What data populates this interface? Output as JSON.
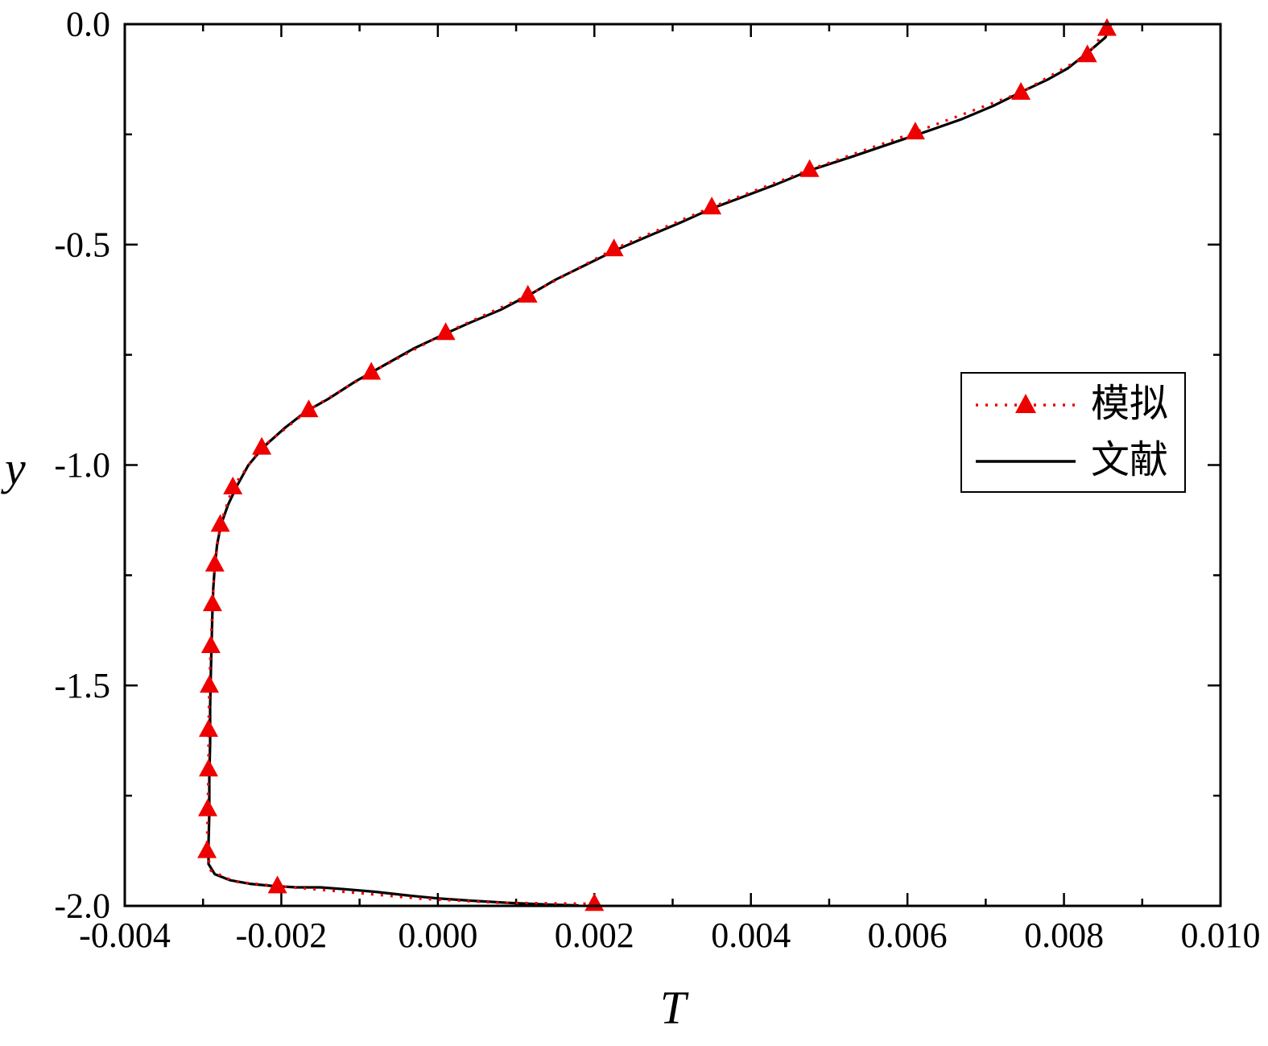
{
  "chart_data": {
    "type": "line",
    "title": "",
    "xlabel": "T",
    "ylabel": "y",
    "xlim": [
      -0.004,
      0.01
    ],
    "ylim": [
      -2.0,
      0.0
    ],
    "grid": false,
    "legend_position": "right-middle",
    "x_ticks": [
      -0.004,
      -0.002,
      0.0,
      0.002,
      0.004,
      0.006,
      0.008,
      0.01
    ],
    "x_tick_labels": [
      "-0.004",
      "-0.002",
      "0.000",
      "0.002",
      "0.004",
      "0.006",
      "0.008",
      "0.010"
    ],
    "x_minor_step": 0.001,
    "y_ticks": [
      0.0,
      -0.5,
      -1.0,
      -1.5,
      -2.0
    ],
    "y_tick_labels": [
      "0.0",
      "-0.5",
      "-1.0",
      "-1.5",
      "-2.0"
    ],
    "y_minor_step": 0.25,
    "series": [
      {
        "name": "文献",
        "color": "#000000",
        "line_style": "solid",
        "marker": "none",
        "line_points": [
          [
            0.0086,
            0.0
          ],
          [
            0.00853,
            -0.03
          ],
          [
            0.0083,
            -0.065
          ],
          [
            0.00805,
            -0.1
          ],
          [
            0.0078,
            -0.125
          ],
          [
            0.0075,
            -0.15
          ],
          [
            0.0071,
            -0.185
          ],
          [
            0.0067,
            -0.215
          ],
          [
            0.0063,
            -0.24
          ],
          [
            0.0058,
            -0.27
          ],
          [
            0.0053,
            -0.3
          ],
          [
            0.00478,
            -0.33
          ],
          [
            0.0043,
            -0.365
          ],
          [
            0.00385,
            -0.395
          ],
          [
            0.0035,
            -0.418
          ],
          [
            0.0031,
            -0.45
          ],
          [
            0.0027,
            -0.48
          ],
          [
            0.00228,
            -0.512
          ],
          [
            0.0019,
            -0.545
          ],
          [
            0.0015,
            -0.58
          ],
          [
            0.00118,
            -0.613
          ],
          [
            0.0008,
            -0.648
          ],
          [
            0.0004,
            -0.678
          ],
          [
            0.00012,
            -0.7
          ],
          [
            -0.0003,
            -0.735
          ],
          [
            -0.0007,
            -0.775
          ],
          [
            -0.00105,
            -0.81
          ],
          [
            -0.0014,
            -0.85
          ],
          [
            -0.00168,
            -0.878
          ],
          [
            -0.00195,
            -0.915
          ],
          [
            -0.00222,
            -0.958
          ],
          [
            -0.00242,
            -1.0
          ],
          [
            -0.00256,
            -1.045
          ],
          [
            -0.00268,
            -1.09
          ],
          [
            -0.00277,
            -1.135
          ],
          [
            -0.00282,
            -1.18
          ],
          [
            -0.00285,
            -1.23
          ],
          [
            -0.00287,
            -1.28
          ],
          [
            -0.00288,
            -1.33
          ],
          [
            -0.00289,
            -1.4
          ],
          [
            -0.0029,
            -1.47
          ],
          [
            -0.00291,
            -1.55
          ],
          [
            -0.00291,
            -1.63
          ],
          [
            -0.00292,
            -1.71
          ],
          [
            -0.00292,
            -1.79
          ],
          [
            -0.00293,
            -1.86
          ],
          [
            -0.00293,
            -1.905
          ],
          [
            -0.00285,
            -1.928
          ],
          [
            -0.00265,
            -1.942
          ],
          [
            -0.0024,
            -1.95
          ],
          [
            -0.0021,
            -1.955
          ],
          [
            -0.0018,
            -1.958
          ],
          [
            -0.0015,
            -1.958
          ],
          [
            -0.0012,
            -1.962
          ],
          [
            -0.0008,
            -1.968
          ],
          [
            -0.0004,
            -1.976
          ],
          [
            0.0,
            -1.983
          ],
          [
            0.0004,
            -1.988
          ],
          [
            0.0009,
            -1.993
          ],
          [
            0.0014,
            -1.997
          ],
          [
            0.0018,
            -1.999
          ]
        ]
      },
      {
        "name": "模拟",
        "color": "#ee0000",
        "line_style": "dotted",
        "marker": "triangle",
        "marker_points": [
          [
            0.00855,
            -0.01
          ],
          [
            0.0083,
            -0.07
          ],
          [
            0.00745,
            -0.155
          ],
          [
            0.0061,
            -0.245
          ],
          [
            0.00475,
            -0.33
          ],
          [
            0.0035,
            -0.415
          ],
          [
            0.00225,
            -0.51
          ],
          [
            0.00115,
            -0.615
          ],
          [
            0.0001,
            -0.7
          ],
          [
            -0.00085,
            -0.79
          ],
          [
            -0.00165,
            -0.875
          ],
          [
            -0.00225,
            -0.96
          ],
          [
            -0.00262,
            -1.05
          ],
          [
            -0.00278,
            -1.135
          ],
          [
            -0.00285,
            -1.225
          ],
          [
            -0.00288,
            -1.315
          ],
          [
            -0.0029,
            -1.41
          ],
          [
            -0.00292,
            -1.5
          ],
          [
            -0.00293,
            -1.6
          ],
          [
            -0.00293,
            -1.69
          ],
          [
            -0.00294,
            -1.78
          ],
          [
            -0.00295,
            -1.875
          ],
          [
            -0.00205,
            -1.955
          ],
          [
            0.002,
            -1.995
          ]
        ],
        "line_points": [
          [
            0.0086,
            0.0
          ],
          [
            0.00855,
            -0.01
          ],
          [
            0.0083,
            -0.07
          ],
          [
            0.00745,
            -0.155
          ],
          [
            0.0061,
            -0.245
          ],
          [
            0.00475,
            -0.33
          ],
          [
            0.0035,
            -0.415
          ],
          [
            0.00225,
            -0.51
          ],
          [
            0.00115,
            -0.615
          ],
          [
            0.0001,
            -0.7
          ],
          [
            -0.00085,
            -0.79
          ],
          [
            -0.00165,
            -0.875
          ],
          [
            -0.00225,
            -0.96
          ],
          [
            -0.00262,
            -1.05
          ],
          [
            -0.00278,
            -1.135
          ],
          [
            -0.00285,
            -1.225
          ],
          [
            -0.00288,
            -1.315
          ],
          [
            -0.0029,
            -1.41
          ],
          [
            -0.00292,
            -1.5
          ],
          [
            -0.00293,
            -1.6
          ],
          [
            -0.00293,
            -1.69
          ],
          [
            -0.00294,
            -1.78
          ],
          [
            -0.00295,
            -1.875
          ],
          [
            -0.0029,
            -1.92
          ],
          [
            -0.0026,
            -1.945
          ],
          [
            -0.00205,
            -1.955
          ],
          [
            -0.0012,
            -1.968
          ],
          [
            -0.0002,
            -1.984
          ],
          [
            0.0008,
            -1.993
          ],
          [
            0.002,
            -1.995
          ]
        ]
      }
    ],
    "legend_entries": [
      "模拟",
      "文献"
    ]
  }
}
